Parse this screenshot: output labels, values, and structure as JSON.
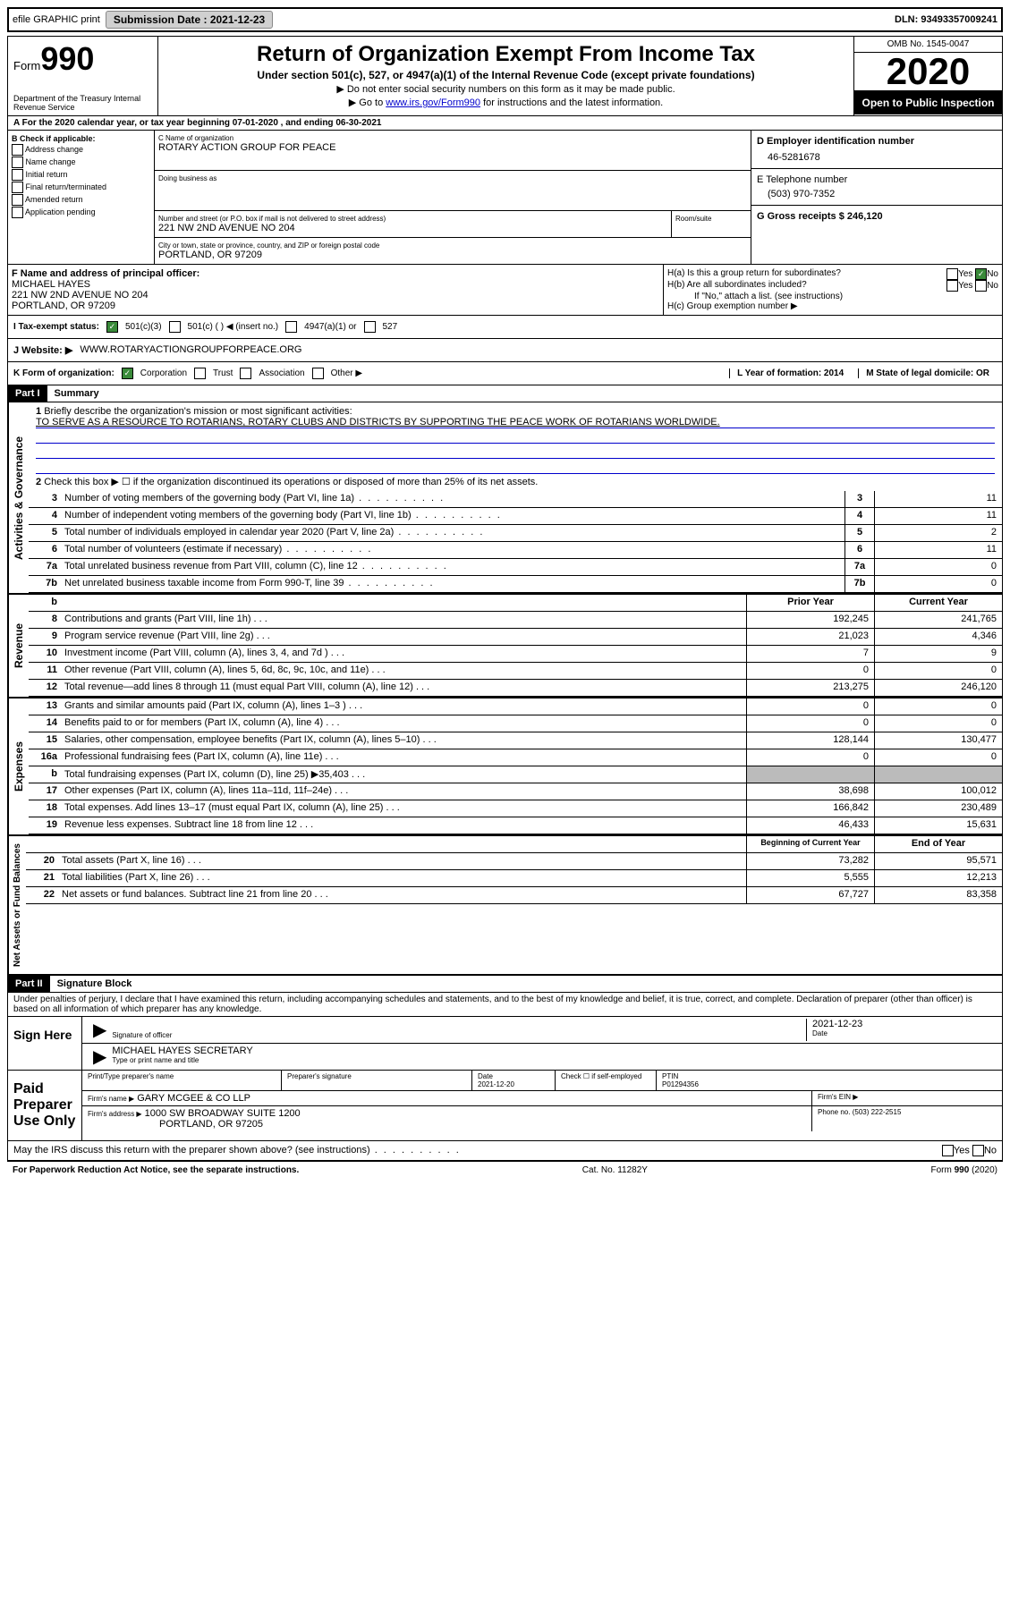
{
  "topbar": {
    "efile": "efile GRAPHIC print",
    "submission_label": "Submission Date : 2021-12-23",
    "dln": "DLN: 93493357009241"
  },
  "header": {
    "form_label": "Form",
    "form_number": "990",
    "department": "Department of the Treasury Internal Revenue Service",
    "title": "Return of Organization Exempt From Income Tax",
    "subtitle": "Under section 501(c), 527, or 4947(a)(1) of the Internal Revenue Code (except private foundations)",
    "note1": "▶ Do not enter social security numbers on this form as it may be made public.",
    "note2": "▶ Go to ",
    "note2_link": "www.irs.gov/Form990",
    "note2_suffix": " for instructions and the latest information.",
    "omb": "OMB No. 1545-0047",
    "year": "2020",
    "open_public": "Open to Public Inspection"
  },
  "row_a": "A For the 2020 calendar year, or tax year beginning 07-01-2020   , and ending 06-30-2021",
  "section_b": {
    "title": "B Check if applicable:",
    "items": [
      "Address change",
      "Name change",
      "Initial return",
      "Final return/terminated",
      "Amended return",
      "Application pending"
    ]
  },
  "section_c": {
    "name_label": "C Name of organization",
    "name": "ROTARY ACTION GROUP FOR PEACE",
    "dba_label": "Doing business as",
    "street_label": "Number and street (or P.O. box if mail is not delivered to street address)",
    "room_label": "Room/suite",
    "street": "221 NW 2ND AVENUE NO 204",
    "city_label": "City or town, state or province, country, and ZIP or foreign postal code",
    "city": "PORTLAND, OR  97209"
  },
  "section_d": {
    "label": "D Employer identification number",
    "value": "46-5281678"
  },
  "section_e": {
    "label": "E Telephone number",
    "value": "(503) 970-7352"
  },
  "section_g": {
    "label": "G Gross receipts $ 246,120"
  },
  "section_f": {
    "label": "F Name and address of principal officer:",
    "name": "MICHAEL HAYES",
    "addr1": "221 NW 2ND AVENUE NO 204",
    "addr2": "PORTLAND, OR  97209"
  },
  "section_h": {
    "ha": "H(a)  Is this a group return for subordinates?",
    "hb": "H(b)  Are all subordinates included?",
    "hb_note": "If \"No,\" attach a list. (see instructions)",
    "hc": "H(c)  Group exemption number ▶",
    "yes": "Yes",
    "no": "No"
  },
  "tax_exempt": {
    "label": "I  Tax-exempt status:",
    "opt1": "501(c)(3)",
    "opt2": "501(c) (  ) ◀ (insert no.)",
    "opt3": "4947(a)(1) or",
    "opt4": "527"
  },
  "section_j": {
    "label": "J  Website: ▶",
    "value": "WWW.ROTARYACTIONGROUPFORPEACE.ORG"
  },
  "section_k": {
    "label": "K Form of organization:",
    "opts": [
      "Corporation",
      "Trust",
      "Association",
      "Other ▶"
    ],
    "l_label": "L Year of formation: 2014",
    "m_label": "M State of legal domicile: OR"
  },
  "part1": {
    "badge": "Part I",
    "title": "Summary",
    "q1": "Briefly describe the organization's mission or most significant activities:",
    "q1_answer": "TO SERVE AS A RESOURCE TO ROTARIANS, ROTARY CLUBS AND DISTRICTS BY SUPPORTING THE PEACE WORK OF ROTARIANS WORLDWIDE.",
    "q2": "Check this box ▶ ☐  if the organization discontinued its operations or disposed of more than 25% of its net assets.",
    "governance_label": "Activities & Governance",
    "revenue_label": "Revenue",
    "expenses_label": "Expenses",
    "assets_label": "Net Assets or Fund Balances",
    "gov_lines": [
      {
        "n": "3",
        "t": "Number of voting members of the governing body (Part VI, line 1a)",
        "v": "11"
      },
      {
        "n": "4",
        "t": "Number of independent voting members of the governing body (Part VI, line 1b)",
        "v": "11"
      },
      {
        "n": "5",
        "t": "Total number of individuals employed in calendar year 2020 (Part V, line 2a)",
        "v": "2"
      },
      {
        "n": "6",
        "t": "Total number of volunteers (estimate if necessary)",
        "v": "11"
      },
      {
        "n": "7a",
        "t": "Total unrelated business revenue from Part VIII, column (C), line 12",
        "v": "0"
      },
      {
        "n": "7b",
        "t": "Net unrelated business taxable income from Form 990-T, line 39",
        "v": "0"
      }
    ],
    "prior_year": "Prior Year",
    "current_year": "Current Year",
    "rev_lines": [
      {
        "n": "8",
        "t": "Contributions and grants (Part VIII, line 1h)",
        "p": "192,245",
        "c": "241,765"
      },
      {
        "n": "9",
        "t": "Program service revenue (Part VIII, line 2g)",
        "p": "21,023",
        "c": "4,346"
      },
      {
        "n": "10",
        "t": "Investment income (Part VIII, column (A), lines 3, 4, and 7d )",
        "p": "7",
        "c": "9"
      },
      {
        "n": "11",
        "t": "Other revenue (Part VIII, column (A), lines 5, 6d, 8c, 9c, 10c, and 11e)",
        "p": "0",
        "c": "0"
      },
      {
        "n": "12",
        "t": "Total revenue—add lines 8 through 11 (must equal Part VIII, column (A), line 12)",
        "p": "213,275",
        "c": "246,120"
      }
    ],
    "exp_lines": [
      {
        "n": "13",
        "t": "Grants and similar amounts paid (Part IX, column (A), lines 1–3 )",
        "p": "0",
        "c": "0"
      },
      {
        "n": "14",
        "t": "Benefits paid to or for members (Part IX, column (A), line 4)",
        "p": "0",
        "c": "0"
      },
      {
        "n": "15",
        "t": "Salaries, other compensation, employee benefits (Part IX, column (A), lines 5–10)",
        "p": "128,144",
        "c": "130,477"
      },
      {
        "n": "16a",
        "t": "Professional fundraising fees (Part IX, column (A), line 11e)",
        "p": "0",
        "c": "0"
      },
      {
        "n": "b",
        "t": "Total fundraising expenses (Part IX, column (D), line 25) ▶35,403",
        "p": "",
        "c": "",
        "shaded": true
      },
      {
        "n": "17",
        "t": "Other expenses (Part IX, column (A), lines 11a–11d, 11f–24e)",
        "p": "38,698",
        "c": "100,012"
      },
      {
        "n": "18",
        "t": "Total expenses. Add lines 13–17 (must equal Part IX, column (A), line 25)",
        "p": "166,842",
        "c": "230,489"
      },
      {
        "n": "19",
        "t": "Revenue less expenses. Subtract line 18 from line 12",
        "p": "46,433",
        "c": "15,631"
      }
    ],
    "begin_year": "Beginning of Current Year",
    "end_year": "End of Year",
    "asset_lines": [
      {
        "n": "20",
        "t": "Total assets (Part X, line 16)",
        "p": "73,282",
        "c": "95,571"
      },
      {
        "n": "21",
        "t": "Total liabilities (Part X, line 26)",
        "p": "5,555",
        "c": "12,213"
      },
      {
        "n": "22",
        "t": "Net assets or fund balances. Subtract line 21 from line 20",
        "p": "67,727",
        "c": "83,358"
      }
    ]
  },
  "part2": {
    "badge": "Part II",
    "title": "Signature Block",
    "penalty": "Under penalties of perjury, I declare that I have examined this return, including accompanying schedules and statements, and to the best of my knowledge and belief, it is true, correct, and complete. Declaration of preparer (other than officer) is based on all information of which preparer has any knowledge."
  },
  "sign": {
    "left": "Sign Here",
    "sig_label": "Signature of officer",
    "date": "2021-12-23",
    "date_label": "Date",
    "name": "MICHAEL HAYES  SECRETARY",
    "name_label": "Type or print name and title"
  },
  "paid": {
    "left": "Paid Preparer Use Only",
    "print_label": "Print/Type preparer's name",
    "sig_label": "Preparer's signature",
    "date_label": "Date",
    "date": "2021-12-20",
    "check_label": "Check ☐ if self-employed",
    "ptin_label": "PTIN",
    "ptin": "P01294356",
    "firm_name_label": "Firm's name   ▶",
    "firm_name": "GARY MCGEE & CO LLP",
    "firm_ein_label": "Firm's EIN ▶",
    "firm_addr_label": "Firm's address ▶",
    "firm_addr1": "1000 SW BROADWAY SUITE 1200",
    "firm_addr2": "PORTLAND, OR  97205",
    "phone_label": "Phone no. (503) 222-2515"
  },
  "footer": {
    "discuss": "May the IRS discuss this return with the preparer shown above? (see instructions)",
    "paperwork": "For Paperwork Reduction Act Notice, see the separate instructions.",
    "cat": "Cat. No. 11282Y",
    "form": "Form 990 (2020)",
    "yes": "Yes",
    "no": "No"
  }
}
